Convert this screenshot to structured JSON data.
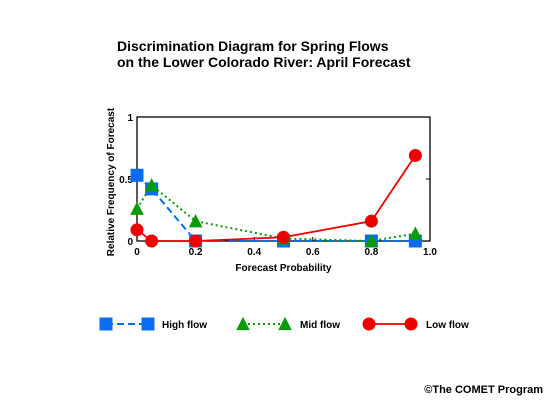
{
  "chart_data": {
    "type": "line",
    "title_lines": [
      "Discrimination Diagram for Spring Flows",
      "on the Lower Colorado River: April Forecast"
    ],
    "xlabel": "Forecast Probability",
    "ylabel": "Relative Frequency of Forecast",
    "xlim": [
      0,
      1
    ],
    "ylim": [
      0,
      1
    ],
    "x_ticks": [
      {
        "value": 0,
        "label": "0"
      },
      {
        "value": 0.2,
        "label": "0.2"
      },
      {
        "value": 0.4,
        "label": "0.4"
      },
      {
        "value": 0.6,
        "label": "0.6"
      },
      {
        "value": 0.8,
        "label": "0.8"
      },
      {
        "value": 1.0,
        "label": "1.0"
      }
    ],
    "y_ticks": [
      {
        "value": 0,
        "label": "0"
      },
      {
        "value": 0.5,
        "label": "0.5"
      },
      {
        "value": 1,
        "label": "1"
      }
    ],
    "grid": false,
    "legend_position": "bottom",
    "series": [
      {
        "name": "High flow",
        "color": "#0a6cf0",
        "marker": "square",
        "line_style": "dashed",
        "x": [
          0,
          0.05,
          0.2,
          0.5,
          0.8,
          0.95
        ],
        "y": [
          0.53,
          0.42,
          0.0,
          0.0,
          0.0,
          0.0
        ]
      },
      {
        "name": "Mid flow",
        "color": "#0a9a0a",
        "marker": "triangle",
        "line_style": "dotted",
        "x": [
          0,
          0.05,
          0.2,
          0.5,
          0.8,
          0.95
        ],
        "y": [
          0.26,
          0.45,
          0.16,
          0.02,
          0.0,
          0.06
        ]
      },
      {
        "name": "Low flow",
        "color": "#ee0000",
        "marker": "circle",
        "line_style": "solid",
        "x": [
          0,
          0.05,
          0.2,
          0.5,
          0.8,
          0.95
        ],
        "y": [
          0.09,
          0.0,
          0.0,
          0.03,
          0.16,
          0.69
        ]
      }
    ]
  },
  "copyright": "©The COMET Program"
}
